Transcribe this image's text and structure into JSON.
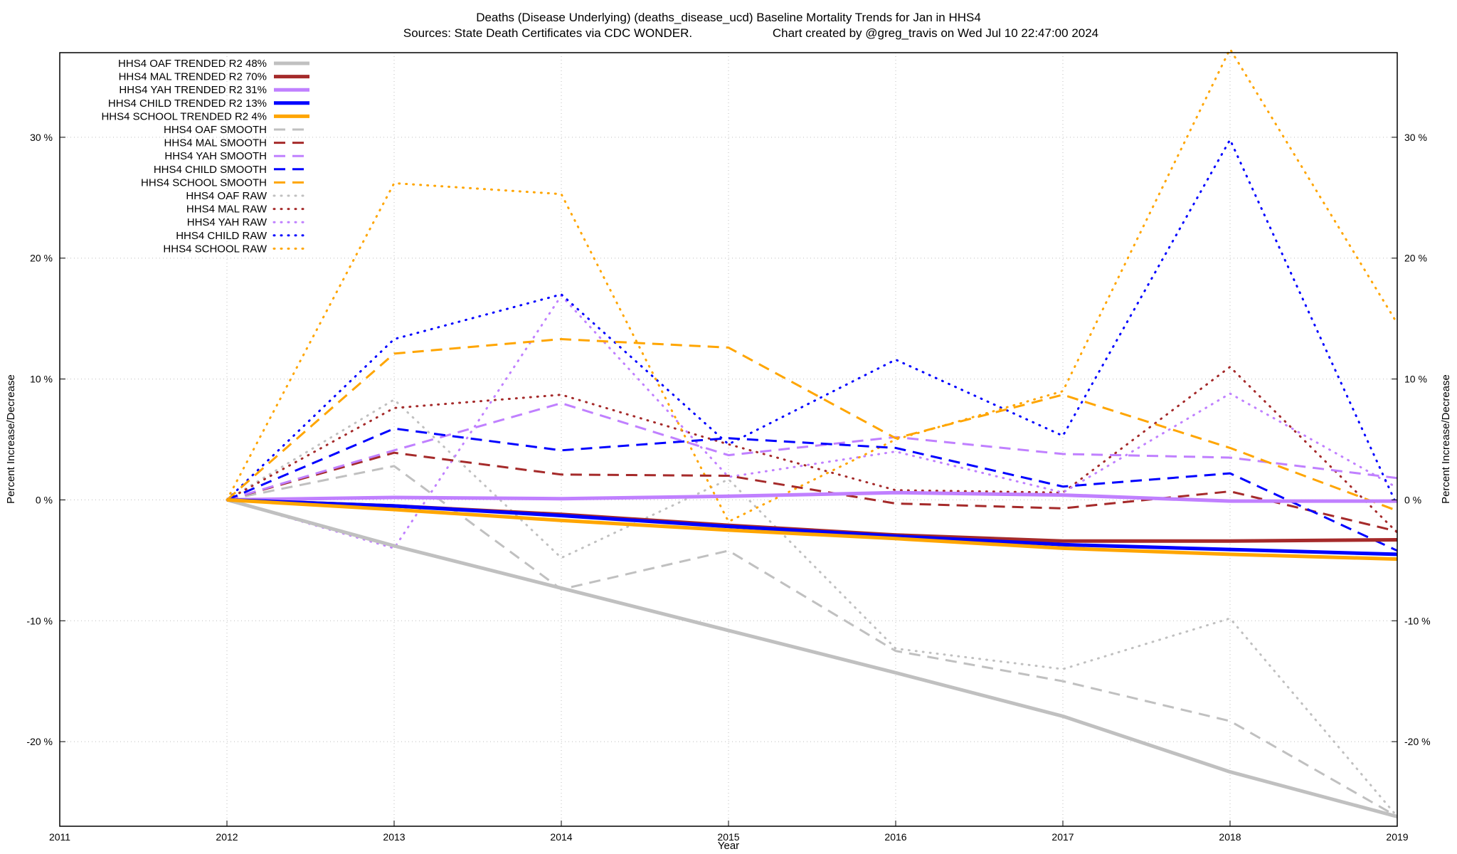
{
  "chart_data": {
    "type": "line",
    "title": "Deaths (Disease Underlying) (deaths_disease_ucd)  Baseline Mortality Trends for Jan in HHS4",
    "subtitle_left": "Sources: State Death Certificates via CDC WONDER.",
    "subtitle_right": "Chart created by @greg_travis on Wed Jul 10 22:47:00 2024",
    "xlabel": "Year",
    "ylabel": "Percent Increase/Decrease",
    "xlim": [
      2011,
      2019
    ],
    "ylim": [
      -27,
      37
    ],
    "grid": true,
    "legend_position": "top-left",
    "x_ticks": [
      2011,
      2012,
      2013,
      2014,
      2015,
      2016,
      2017,
      2018,
      2019
    ],
    "y_ticks": [
      {
        "value": -20,
        "label": "-20 %"
      },
      {
        "value": -10,
        "label": "-10 %"
      },
      {
        "value": 0,
        "label": "0 %"
      },
      {
        "value": 10,
        "label": "10 %"
      },
      {
        "value": 20,
        "label": "20 %"
      },
      {
        "value": 30,
        "label": "30 %"
      }
    ],
    "x": [
      2012,
      2013,
      2014,
      2015,
      2016,
      2017,
      2018,
      2019
    ],
    "series": [
      {
        "name": "HHS4 OAF TRENDED R2  48%",
        "style": "solid",
        "color": "#c0c0c0",
        "values": [
          0,
          -3.8,
          -7.3,
          -10.8,
          -14.3,
          -17.9,
          -22.5,
          -26.2
        ]
      },
      {
        "name": "HHS4 MAL TRENDED R2  70%",
        "style": "solid",
        "color": "#a52a2a",
        "values": [
          0,
          -0.5,
          -1.2,
          -2.1,
          -2.9,
          -3.4,
          -3.4,
          -3.3
        ]
      },
      {
        "name": "HHS4 YAH TRENDED R2  31%",
        "style": "solid",
        "color": "#c080ff",
        "values": [
          0,
          0.2,
          0.1,
          0.3,
          0.6,
          0.4,
          -0.1,
          -0.1
        ]
      },
      {
        "name": "HHS4 CHILD TRENDED R2  13%",
        "style": "solid",
        "color": "#0000ff",
        "values": [
          0,
          -0.5,
          -1.3,
          -2.2,
          -3.0,
          -3.7,
          -4.1,
          -4.5
        ]
      },
      {
        "name": "HHS4 SCHOOL TRENDED R2   4%",
        "style": "solid",
        "color": "#ffa500",
        "values": [
          0,
          -0.8,
          -1.7,
          -2.5,
          -3.2,
          -4.0,
          -4.5,
          -4.9
        ]
      },
      {
        "name": "HHS4 OAF SMOOTH",
        "style": "dashed",
        "color": "#c0c0c0",
        "values": [
          0,
          2.8,
          -7.4,
          -4.2,
          -12.5,
          -15.0,
          -18.3,
          -26.2
        ]
      },
      {
        "name": "HHS4 MAL SMOOTH",
        "style": "dashed",
        "color": "#a52a2a",
        "values": [
          0,
          3.9,
          2.1,
          2.0,
          -0.3,
          -0.7,
          0.7,
          -2.6
        ]
      },
      {
        "name": "HHS4 YAH SMOOTH",
        "style": "dashed",
        "color": "#c080ff",
        "values": [
          0,
          4.1,
          8.0,
          3.7,
          5.2,
          3.8,
          3.5,
          1.8
        ]
      },
      {
        "name": "HHS4 CHILD SMOOTH",
        "style": "dashed",
        "color": "#0000ff",
        "values": [
          0,
          5.9,
          4.1,
          5.1,
          4.3,
          1.1,
          2.2,
          -4.2
        ]
      },
      {
        "name": "HHS4 SCHOOL SMOOTH",
        "style": "dashed",
        "color": "#ffa500",
        "values": [
          0,
          12.1,
          13.3,
          12.6,
          5.1,
          8.7,
          4.3,
          -0.9
        ]
      },
      {
        "name": "HHS4 OAF RAW",
        "style": "dotted",
        "color": "#c0c0c0",
        "values": [
          0,
          8.3,
          -4.8,
          1.7,
          -12.3,
          -14.0,
          -9.8,
          -26.2
        ]
      },
      {
        "name": "HHS4 MAL RAW",
        "style": "dotted",
        "color": "#a52a2a",
        "values": [
          0,
          7.6,
          8.7,
          4.6,
          0.8,
          0.6,
          11.0,
          -2.7
        ]
      },
      {
        "name": "HHS4 YAH RAW",
        "style": "dotted",
        "color": "#c080ff",
        "values": [
          0,
          -4.0,
          16.9,
          1.9,
          4.0,
          0.6,
          8.8,
          1.0
        ]
      },
      {
        "name": "HHS4 CHILD RAW",
        "style": "dotted",
        "color": "#0000ff",
        "values": [
          0,
          13.3,
          17.0,
          4.6,
          11.6,
          5.3,
          29.8,
          -0.5
        ]
      },
      {
        "name": "HHS4 SCHOOL RAW",
        "style": "dotted",
        "color": "#ffa500",
        "values": [
          0,
          26.2,
          25.3,
          -1.8,
          5.0,
          9.0,
          37.3,
          14.6
        ]
      }
    ]
  }
}
